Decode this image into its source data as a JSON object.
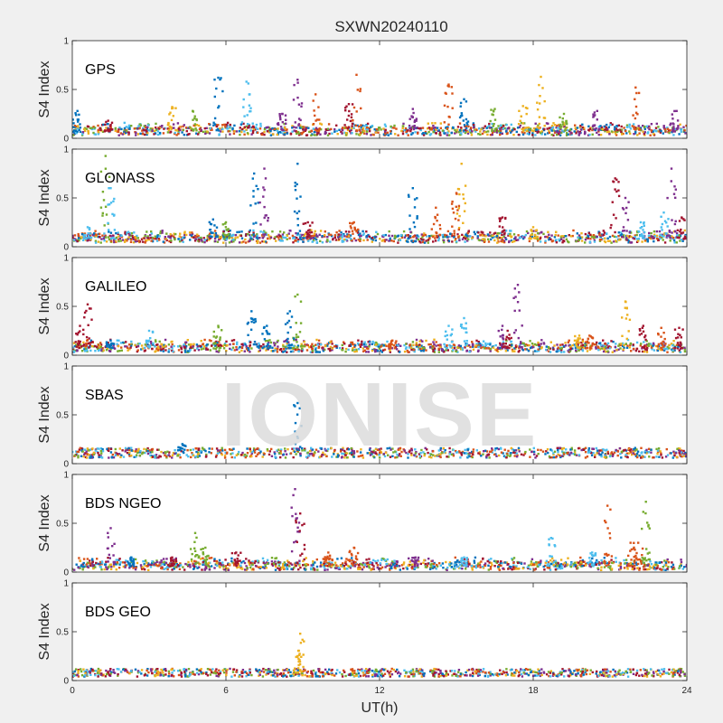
{
  "figure": {
    "title": "SXWN20240110",
    "xlabel": "UT(h)",
    "ylabel": "S4 Index",
    "watermark": "IONISE",
    "background": "#f0f0f0",
    "axes_background": "#ffffff"
  },
  "chart_data": {
    "type": "scatter",
    "title": "SXWN20240110",
    "xlabel": "UT(h)",
    "ylabel": "S4 Index",
    "xlim": [
      0,
      24
    ],
    "ylim": [
      0,
      1
    ],
    "xticks": [
      "0",
      "6",
      "12",
      "18",
      "24"
    ],
    "yticks": [
      "0",
      "0.5",
      "1"
    ],
    "series_colors": [
      "#0072BD",
      "#D95319",
      "#EDB120",
      "#7E2F8E",
      "#77AC30",
      "#4DBEEE",
      "#A2142F"
    ],
    "grid": false,
    "legend": "none",
    "panels": [
      {
        "label": "GPS",
        "baseline": 0.07,
        "spikes": [
          [
            0.2,
            0.28,
            0
          ],
          [
            1.4,
            0.18,
            6
          ],
          [
            3.9,
            0.32,
            2
          ],
          [
            4.7,
            0.28,
            4
          ],
          [
            5.7,
            0.62,
            0
          ],
          [
            6.8,
            0.58,
            5
          ],
          [
            8.2,
            0.25,
            3
          ],
          [
            8.8,
            0.6,
            3
          ],
          [
            9.5,
            0.45,
            1
          ],
          [
            10.8,
            0.35,
            6
          ],
          [
            11.1,
            0.65,
            1
          ],
          [
            13.3,
            0.3,
            3
          ],
          [
            14.7,
            0.55,
            1
          ],
          [
            15.3,
            0.4,
            0
          ],
          [
            16.5,
            0.3,
            4
          ],
          [
            17.6,
            0.33,
            2
          ],
          [
            18.3,
            0.63,
            2
          ],
          [
            19.2,
            0.25,
            4
          ],
          [
            20.5,
            0.28,
            3
          ],
          [
            22.0,
            0.52,
            1
          ],
          [
            23.6,
            0.28,
            3
          ]
        ]
      },
      {
        "label": "GLONASS",
        "baseline": 0.08,
        "spikes": [
          [
            0.6,
            0.2,
            5
          ],
          [
            1.3,
            0.93,
            4
          ],
          [
            1.5,
            0.6,
            5
          ],
          [
            5.5,
            0.28,
            0
          ],
          [
            6.0,
            0.25,
            4
          ],
          [
            7.1,
            0.75,
            0
          ],
          [
            7.5,
            0.8,
            3
          ],
          [
            8.8,
            0.85,
            0
          ],
          [
            9.2,
            0.25,
            6
          ],
          [
            11.0,
            0.25,
            1
          ],
          [
            13.3,
            0.6,
            0
          ],
          [
            14.2,
            0.4,
            1
          ],
          [
            15.2,
            0.85,
            2
          ],
          [
            15.0,
            0.55,
            1
          ],
          [
            16.8,
            0.3,
            6
          ],
          [
            18.0,
            0.2,
            2
          ],
          [
            21.2,
            0.7,
            6
          ],
          [
            21.6,
            0.5,
            3
          ],
          [
            22.2,
            0.25,
            5
          ],
          [
            23.4,
            0.8,
            3
          ],
          [
            23.1,
            0.35,
            5
          ],
          [
            23.8,
            0.3,
            6
          ]
        ]
      },
      {
        "label": "GALILEO",
        "baseline": 0.07,
        "spikes": [
          [
            0.3,
            0.3,
            6
          ],
          [
            0.6,
            0.52,
            6
          ],
          [
            1.5,
            0.15,
            0
          ],
          [
            3.0,
            0.25,
            5
          ],
          [
            5.7,
            0.3,
            4
          ],
          [
            7.0,
            0.45,
            0
          ],
          [
            7.6,
            0.3,
            0
          ],
          [
            8.8,
            0.62,
            4
          ],
          [
            8.5,
            0.45,
            0
          ],
          [
            12.5,
            0.15,
            1
          ],
          [
            14.7,
            0.3,
            5
          ],
          [
            15.3,
            0.38,
            5
          ],
          [
            16.8,
            0.3,
            3
          ],
          [
            17.4,
            0.72,
            3
          ],
          [
            17.0,
            0.25,
            6
          ],
          [
            19.8,
            0.2,
            2
          ],
          [
            20.2,
            0.2,
            1
          ],
          [
            21.6,
            0.55,
            2
          ],
          [
            22.3,
            0.3,
            6
          ],
          [
            23.0,
            0.28,
            1
          ],
          [
            23.7,
            0.28,
            6
          ]
        ]
      },
      {
        "label": "SBAS",
        "baseline": 0.11,
        "spikes": [
          [
            8.8,
            0.62,
            0
          ],
          [
            4.3,
            0.2,
            0
          ]
        ]
      },
      {
        "label": "BDS NGEO",
        "baseline": 0.06,
        "spikes": [
          [
            1.5,
            0.45,
            3
          ],
          [
            2.3,
            0.15,
            0
          ],
          [
            3.9,
            0.15,
            6
          ],
          [
            4.8,
            0.4,
            4
          ],
          [
            5.2,
            0.25,
            4
          ],
          [
            6.4,
            0.2,
            6
          ],
          [
            8.7,
            0.85,
            3
          ],
          [
            8.9,
            0.6,
            6
          ],
          [
            10.0,
            0.2,
            1
          ],
          [
            11.0,
            0.25,
            1
          ],
          [
            13.4,
            0.15,
            3
          ],
          [
            15.3,
            0.15,
            5
          ],
          [
            18.7,
            0.35,
            5
          ],
          [
            20.3,
            0.2,
            5
          ],
          [
            20.9,
            0.68,
            1
          ],
          [
            21.8,
            0.3,
            1
          ],
          [
            22.4,
            0.72,
            4
          ],
          [
            22.1,
            0.3,
            1
          ]
        ]
      },
      {
        "label": "BDS GEO",
        "baseline": 0.08,
        "spikes": [
          [
            8.9,
            0.48,
            2
          ],
          [
            8.8,
            0.25,
            2
          ]
        ]
      }
    ]
  }
}
